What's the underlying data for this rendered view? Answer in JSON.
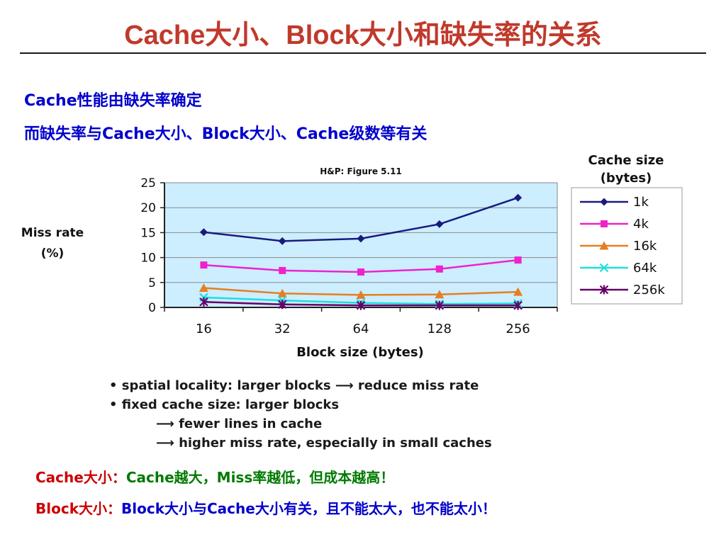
{
  "slide": {
    "title": "Cache大小、Block大小和缺失率的关系",
    "intro_line1": "Cache性能由缺失率确定",
    "intro_line2": "而缺失率与Cache大小、Block大小、Cache级数等有关",
    "bullets": [
      "• spatial locality: larger blocks ⟶ reduce miss rate",
      "• fixed cache size: larger blocks",
      "⟶ fewer lines in cache",
      "⟶ higher miss rate, especially in small caches"
    ],
    "footer_cache_label": "Cache大小：",
    "footer_cache_text": "Cache越大，Miss率越低，但成本越高！",
    "footer_block_label": "Block大小：",
    "footer_block_text": "Block大小与Cache大小有关，且不能太大，也不能太小！"
  },
  "chart_data": {
    "type": "line",
    "title": "H&P: Figure 5.11",
    "xlabel": "Block size (bytes)",
    "ylabel": "Miss rate (%)",
    "categories": [
      "16",
      "32",
      "64",
      "128",
      "256"
    ],
    "ylim": [
      0,
      25
    ],
    "yticks": [
      0,
      5,
      10,
      15,
      20,
      25
    ],
    "grid": true,
    "plot_background": "#cceeff",
    "legend_title": "Cache size (bytes)",
    "legend_position": "right",
    "series": [
      {
        "name": "1k",
        "values": [
          15.1,
          13.3,
          13.8,
          16.7,
          22.0
        ],
        "color": "#1a1a80",
        "marker": "diamond"
      },
      {
        "name": "4k",
        "values": [
          8.5,
          7.4,
          7.1,
          7.7,
          9.5
        ],
        "color": "#ee22cc",
        "marker": "square"
      },
      {
        "name": "16k",
        "values": [
          3.9,
          2.8,
          2.5,
          2.6,
          3.1
        ],
        "color": "#e67e22",
        "marker": "triangle"
      },
      {
        "name": "64k",
        "values": [
          2.0,
          1.4,
          0.9,
          0.7,
          0.8
        ],
        "color": "#22dddd",
        "marker": "x"
      },
      {
        "name": "256k",
        "values": [
          1.1,
          0.6,
          0.4,
          0.4,
          0.4
        ],
        "color": "#660066",
        "marker": "star"
      }
    ]
  }
}
